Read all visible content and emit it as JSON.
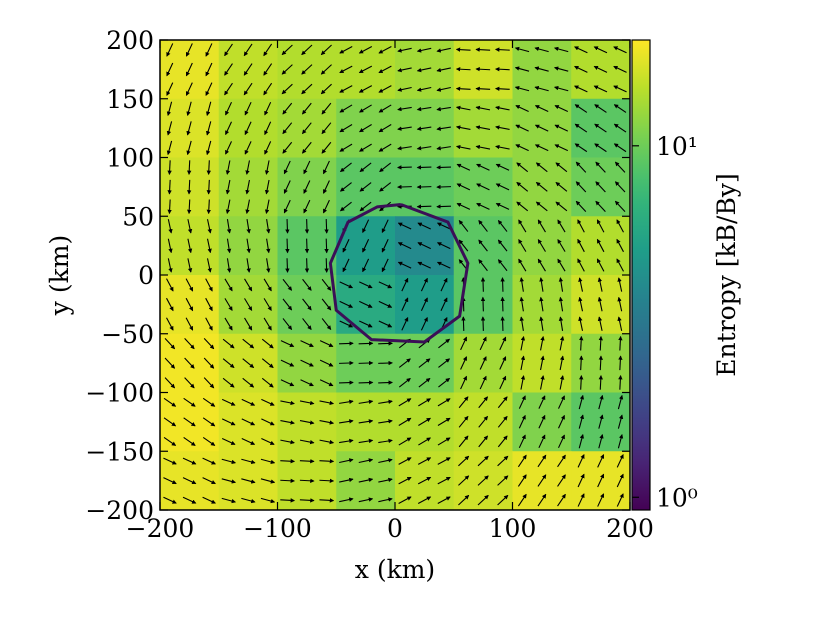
{
  "chart_data": {
    "type": "heatmap",
    "xlabel": "x  (km)",
    "ylabel": "y  (km)",
    "colorbar_label": "Entropy [kB/By]",
    "colormap": "viridis",
    "xlim": [
      -200,
      200
    ],
    "ylim": [
      -200,
      200
    ],
    "xticks": [
      {
        "value": -200,
        "label": "−200"
      },
      {
        "value": -100,
        "label": "−100"
      },
      0,
      100,
      200
    ],
    "yticks": [
      {
        "value": -200,
        "label": "−200"
      },
      {
        "value": -150,
        "label": "−150"
      },
      {
        "value": -100,
        "label": "−100"
      },
      {
        "value": -50,
        "label": "−50"
      },
      0,
      50,
      100,
      150,
      200
    ],
    "clim": [
      0.92,
      20
    ],
    "cticks": [
      {
        "value": 1,
        "label": "10⁰"
      },
      {
        "value": 10,
        "label": "10¹"
      }
    ],
    "color_scale": "log",
    "x": [
      -175,
      -125,
      -75,
      -25,
      25,
      75,
      125,
      175
    ],
    "y": [
      175,
      125,
      75,
      25,
      -25,
      -75,
      -125,
      -175
    ],
    "z": [
      [
        18,
        15,
        14,
        14,
        13,
        16,
        12,
        14
      ],
      [
        17,
        14,
        13,
        11,
        11,
        13,
        12,
        9
      ],
      [
        16,
        13,
        11,
        9,
        9,
        10,
        12,
        10
      ],
      [
        15,
        12,
        9,
        5,
        4,
        9,
        12,
        14
      ],
      [
        18,
        13,
        10,
        6,
        5,
        9,
        13,
        16
      ],
      [
        19,
        16,
        12,
        10,
        10,
        13,
        15,
        12
      ],
      [
        19,
        17,
        15,
        14,
        14,
        15,
        11,
        9
      ],
      [
        18,
        17,
        15,
        12,
        15,
        16,
        18,
        18
      ]
    ],
    "arrow_angle": [
      [
        245,
        236,
        223,
        208,
        192,
        177,
        165,
        155
      ],
      [
        255,
        245,
        231,
        211,
        189,
        169,
        155,
        146
      ],
      [
        267,
        259,
        245,
        218,
        182,
        155,
        141,
        133
      ],
      [
        282,
        279,
        272,
        245,
        155,
        128,
        121,
        118
      ],
      [
        298,
        301,
        308,
        335,
        65,
        92,
        99,
        102
      ],
      [
        313,
        321,
        335,
        2,
        38,
        65,
        79,
        87
      ],
      [
        325,
        335,
        349,
        9,
        31,
        51,
        65,
        75
      ],
      [
        335,
        345,
        357,
        12,
        28,
        43,
        56,
        65
      ]
    ],
    "contour": {
      "color": "#3b0f57",
      "x": [
        5,
        45,
        62,
        55,
        25,
        -20,
        -50,
        -55,
        -40,
        -15,
        5
      ],
      "y": [
        60,
        45,
        10,
        -35,
        -57,
        -55,
        -30,
        10,
        45,
        58,
        60
      ]
    }
  }
}
